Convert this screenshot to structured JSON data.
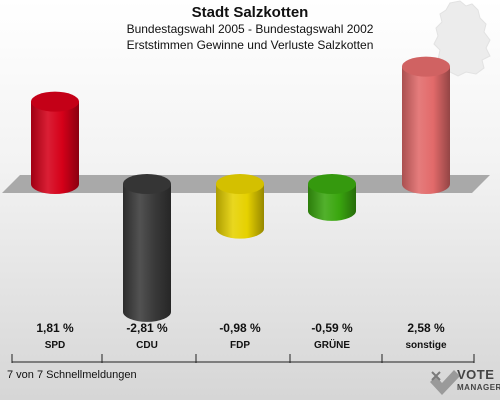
{
  "header": {
    "title": "Stadt Salzkotten",
    "subtitle": "Bundestagswahl 2005 - Bundestagswahl 2002",
    "subtitle2": "Erststimmen Gewinne und Verluste Salzkotten"
  },
  "footer": {
    "text": "7 von 7 Schnellmeldungen"
  },
  "logo": {
    "line1": "VOTE",
    "line2": "MANAGER"
  },
  "chart_data": {
    "type": "bar",
    "title": "Stadt Salzkotten",
    "subtitle": "Bundestagswahl 2005 - Bundestagswahl 2002 / Erststimmen Gewinne und Verluste Salzkotten",
    "categories": [
      "SPD",
      "CDU",
      "FDP",
      "GRÜNE",
      "sonstige"
    ],
    "values": [
      1.81,
      -2.81,
      -0.98,
      -0.59,
      2.58
    ],
    "value_labels": [
      "1,81 %",
      "-2,81 %",
      "-0,98 %",
      "-0,59 %",
      "2,58 %"
    ],
    "colors": [
      "#d50019",
      "#3a3a3a",
      "#e6d100",
      "#3aa60f",
      "#e26a6a"
    ],
    "ylim": [
      -2.81,
      2.58
    ],
    "grid": false,
    "legend": "none"
  }
}
